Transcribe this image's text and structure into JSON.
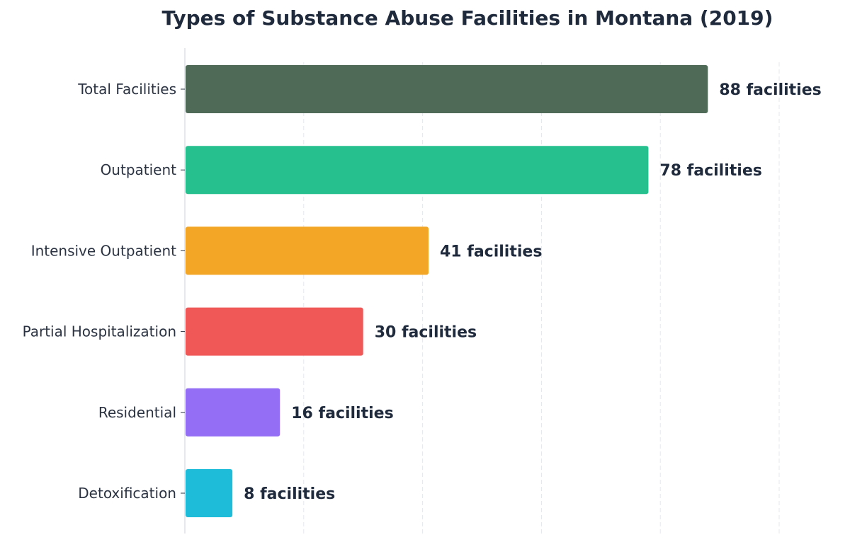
{
  "chart_data": {
    "type": "bar",
    "orientation": "horizontal",
    "title": "Types of Substance Abuse Facilities in Montana (2019)",
    "xlabel": "",
    "ylabel": "",
    "categories": [
      "Total Facilities",
      "Outpatient",
      "Intensive Outpatient",
      "Partial Hospitalization",
      "Residential",
      "Detoxification"
    ],
    "values": [
      88,
      78,
      41,
      30,
      16,
      8
    ],
    "data_labels": [
      "88 facilities",
      "78 facilities",
      "41 facilities",
      "30 facilities",
      "16 facilities",
      "8 facilities"
    ],
    "colors": [
      "#4f6b58",
      "#26c08e",
      "#f3a626",
      "#f05757",
      "#946ef5",
      "#1fbcd9"
    ],
    "xlim": [
      0,
      100
    ],
    "grid": "vertical-dashed",
    "legend": "none"
  }
}
